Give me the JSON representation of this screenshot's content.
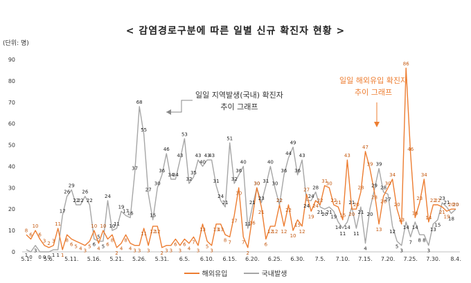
{
  "chart_data": {
    "type": "line",
    "title": "< 감염경로구분에 따른 일별  신규 확진자 현황 >",
    "unit_label": "(단위: 명)",
    "ylim": [
      0,
      90
    ],
    "yticks": [
      0,
      10,
      20,
      30,
      40,
      50,
      60,
      70,
      80,
      90
    ],
    "x": [
      "5.1.",
      "5.2.",
      "5.3.",
      "5.4.",
      "5.5.",
      "5.6.",
      "5.7.",
      "5.8.",
      "5.9.",
      "5.10.",
      "5.11.",
      "5.12.",
      "5.13.",
      "5.14.",
      "5.15.",
      "5.16.",
      "5.17.",
      "5.18.",
      "5.19.",
      "5.20.",
      "5.21.",
      "5.22.",
      "5.23.",
      "5.24.",
      "5.25.",
      "5.26.",
      "5.27.",
      "5.28.",
      "5.29.",
      "5.30.",
      "5.31.",
      "6.1.",
      "6.2.",
      "6.3.",
      "6.4.",
      "6.5.",
      "6.6.",
      "6.7.",
      "6.8.",
      "6.9.",
      "6.10.",
      "6.11.",
      "6.12.",
      "6.13.",
      "6.14.",
      "6.15.",
      "6.16.",
      "6.17.",
      "6.18.",
      "6.19.",
      "6.20.",
      "6.21.",
      "6.22.",
      "6.23.",
      "6.24.",
      "6.25.",
      "6.26.",
      "6.27.",
      "6.28.",
      "6.29.",
      "6.30.",
      "7.1.",
      "7.2.",
      "7.3.",
      "7.4.",
      "7.5.",
      "7.6.",
      "7.7.",
      "7.8.",
      "7.9.",
      "7.10.",
      "7.11.",
      "7.12.",
      "7.13.",
      "7.14.",
      "7.15.",
      "7.16.",
      "7.17.",
      "7.18.",
      "7.19.",
      "7.20.",
      "7.21.",
      "7.22.",
      "7.23.",
      "7.24.",
      "7.25.",
      "7.26.",
      "7.27.",
      "7.28.",
      "7.29.",
      "7.30.",
      "7.31.",
      "8.1.",
      "8.2.",
      "8.3.",
      "8.4."
    ],
    "x_tick_labels": [
      "5.1.",
      "5.6.",
      "5.11.",
      "5.16.",
      "5.21.",
      "5.26.",
      "5.31.",
      "6.5.",
      "6.10.",
      "6.15.",
      "6.20.",
      "6.25.",
      "6.30.",
      "7.5.",
      "7.10.",
      "7.15.",
      "7.20.",
      "7.25.",
      "7.30.",
      "8.4."
    ],
    "series": [
      {
        "name": "해외유입",
        "color": "#ed7d31",
        "values": [
          8,
          6,
          10,
          6,
          3,
          2,
          3,
          11,
          1,
          8,
          6,
          5,
          4,
          3,
          5,
          10,
          4,
          10,
          6,
          8,
          2,
          4,
          8,
          4,
          3,
          3,
          11,
          3,
          12,
          12,
          2,
          3,
          3,
          6,
          3,
          6,
          4,
          7,
          3,
          13,
          5,
          3,
          13,
          13,
          8,
          7,
          17,
          30,
          7,
          2,
          16,
          30,
          21,
          6,
          12,
          12,
          22,
          12,
          22,
          10,
          15,
          12,
          27,
          19,
          24,
          22,
          31,
          30,
          22,
          21,
          15,
          43,
          20,
          20,
          28,
          47,
          39,
          28,
          13,
          26,
          30,
          34,
          20,
          13,
          86,
          46,
          16,
          23,
          34,
          14,
          22,
          22,
          21,
          19,
          20,
          20
        ]
      },
      {
        "name": "국내발생",
        "color": "#a6a6a6",
        "values": [
          1,
          0,
          3,
          0,
          0,
          0,
          1,
          1,
          17,
          26,
          29,
          22,
          22,
          26,
          22,
          6,
          5,
          5,
          24,
          10,
          11,
          19,
          17,
          16,
          37,
          68,
          55,
          27,
          15,
          30,
          36,
          46,
          34,
          34,
          43,
          53,
          32,
          35,
          43,
          40,
          43,
          43,
          31,
          24,
          21,
          51,
          32,
          36,
          40,
          11,
          21,
          30,
          23,
          31,
          40,
          30,
          22,
          36,
          44,
          49,
          36,
          43,
          24,
          24,
          28,
          21,
          20,
          21,
          19,
          14,
          11,
          14,
          21,
          11,
          21,
          4,
          20,
          29,
          39,
          28,
          27,
          12,
          5,
          3,
          14,
          7,
          14,
          8,
          8,
          3,
          13,
          15,
          23,
          21,
          18,
          20
        ]
      }
    ],
    "annotations": [
      {
        "id": "domestic",
        "lines": [
          "일일 지역발생(국내) 확진자",
          "추이 그래프"
        ],
        "color": "#333333"
      },
      {
        "id": "overseas",
        "lines": [
          "일일 해외유입 확진자",
          "추이 그래프"
        ],
        "color": "#ed7d31"
      }
    ],
    "legend": [
      "해외유입",
      "국내발생"
    ],
    "legend_position": "bottom"
  }
}
